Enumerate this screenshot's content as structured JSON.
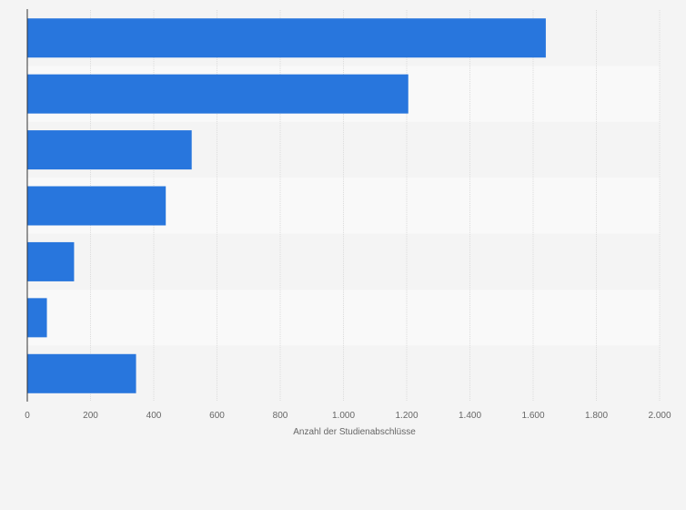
{
  "chart_data": {
    "type": "bar",
    "orientation": "horizontal",
    "categories": [
      "",
      "",
      "",
      "",
      "",
      "",
      ""
    ],
    "values": [
      1640,
      1205,
      520,
      438,
      148,
      62,
      344
    ],
    "title": "",
    "xlabel": "Anzahl der Studienabschlüsse",
    "ylabel": "",
    "xlim": [
      0,
      2000
    ],
    "xticks": [
      0,
      200,
      400,
      600,
      800,
      1000,
      1200,
      1400,
      1600,
      1800,
      2000
    ],
    "xtick_labels": [
      "0",
      "200",
      "400",
      "600",
      "800",
      "1.000",
      "1.200",
      "1.400",
      "1.600",
      "1.800",
      "2.000"
    ],
    "grid": true,
    "legend": "none",
    "bar_color": "#2876dd",
    "band_colors": [
      "#f4f4f4",
      "#f9f9f9"
    ]
  }
}
